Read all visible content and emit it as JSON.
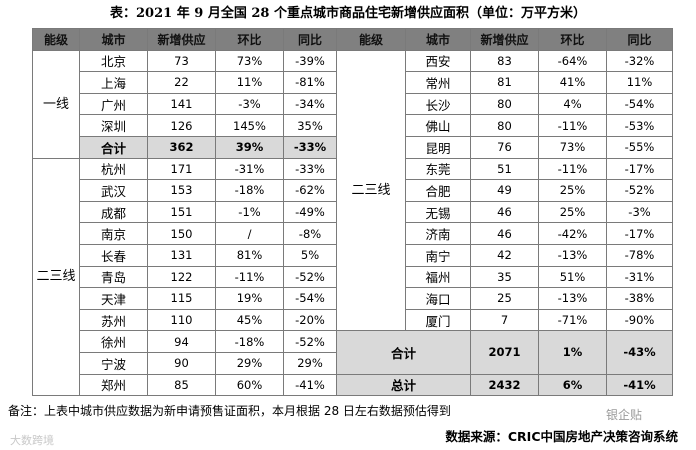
{
  "title": "表：2021 年 9 月全国 28 个重点城市商品住宅新增供应面积（单位：万平方米）",
  "columns": [
    "能级",
    "城市",
    "新增供应",
    "环比",
    "同比",
    "能级",
    "城市",
    "新增供应",
    "环比",
    "同比"
  ],
  "left": [
    {
      "tier": "一线",
      "rows": [
        [
          "北京",
          "73",
          "73%",
          "-39%"
        ],
        [
          "上海",
          "22",
          "11%",
          "-81%"
        ],
        [
          "广州",
          "141",
          "-3%",
          "-34%"
        ],
        [
          "深圳",
          "126",
          "145%",
          "35%"
        ]
      ],
      "subtotal": {
        "label": "合计",
        "values": [
          "362",
          "39%",
          "-33%"
        ]
      }
    },
    {
      "tier": "二三线",
      "rows": [
        [
          "杭州",
          "171",
          "-31%",
          "-33%"
        ],
        [
          "武汉",
          "153",
          "-18%",
          "-62%"
        ],
        [
          "成都",
          "151",
          "-1%",
          "-49%"
        ],
        [
          "南京",
          "150",
          "/",
          "-8%"
        ],
        [
          "长春",
          "131",
          "81%",
          "5%"
        ],
        [
          "青岛",
          "122",
          "-11%",
          "-52%"
        ],
        [
          "天津",
          "115",
          "19%",
          "-54%"
        ],
        [
          "苏州",
          "110",
          "45%",
          "-20%"
        ],
        [
          "徐州",
          "94",
          "-18%",
          "-52%"
        ],
        [
          "宁波",
          "90",
          "29%",
          "29%"
        ],
        [
          "郑州",
          "85",
          "60%",
          "-41%"
        ]
      ]
    }
  ],
  "right": {
    "tier": "二三线",
    "rows": [
      [
        "西安",
        "83",
        "-64%",
        "-32%"
      ],
      [
        "常州",
        "81",
        "41%",
        "11%"
      ],
      [
        "长沙",
        "80",
        "4%",
        "-54%"
      ],
      [
        "佛山",
        "80",
        "-11%",
        "-53%"
      ],
      [
        "昆明",
        "76",
        "73%",
        "-55%"
      ],
      [
        "东莞",
        "51",
        "-11%",
        "-17%"
      ],
      [
        "合肥",
        "49",
        "25%",
        "-52%"
      ],
      [
        "无锡",
        "46",
        "25%",
        "-3%"
      ],
      [
        "济南",
        "46",
        "-42%",
        "-17%"
      ],
      [
        "南宁",
        "42",
        "-13%",
        "-78%"
      ],
      [
        "福州",
        "35",
        "51%",
        "-31%"
      ],
      [
        "海口",
        "25",
        "-13%",
        "-38%"
      ],
      [
        "厦门",
        "7",
        "-71%",
        "-90%"
      ]
    ],
    "subtotal": {
      "label": "合计",
      "values": [
        "2071",
        "1%",
        "-43%"
      ]
    },
    "total": {
      "label": "总计",
      "values": [
        "2432",
        "6%",
        "-41%"
      ]
    }
  },
  "note": "备注：上表中城市供应数据为新申请预售证面积，本月根据 28 日左右数据预估得到",
  "source": "数据来源：CRIC中国房地产决策咨询系统",
  "watermarks": [
    "大数跨境",
    "银企贴"
  ]
}
